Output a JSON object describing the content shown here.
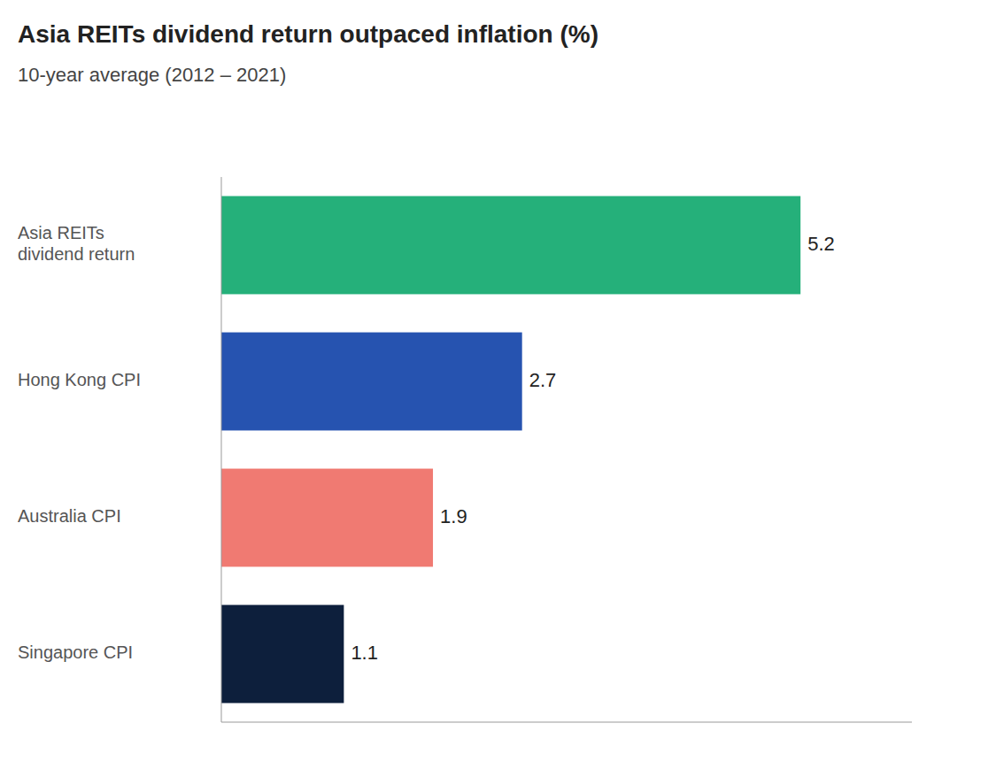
{
  "chart_data": {
    "type": "bar",
    "orientation": "horizontal",
    "title": "Asia REITs dividend return outpaced inflation (%)",
    "subtitle": "10-year average (2012 – 2021)",
    "categories": [
      "Asia REITs\ndividend return",
      "Hong Kong CPI",
      "Australia CPI",
      "Singapore CPI"
    ],
    "values": [
      5.2,
      2.7,
      1.9,
      1.1
    ],
    "colors": [
      "#25b07a",
      "#2653b0",
      "#f07a72",
      "#0d1f3c"
    ],
    "xlim": [
      0,
      6.2
    ],
    "grid": false,
    "data_labels": true,
    "tick_labels": "y"
  }
}
